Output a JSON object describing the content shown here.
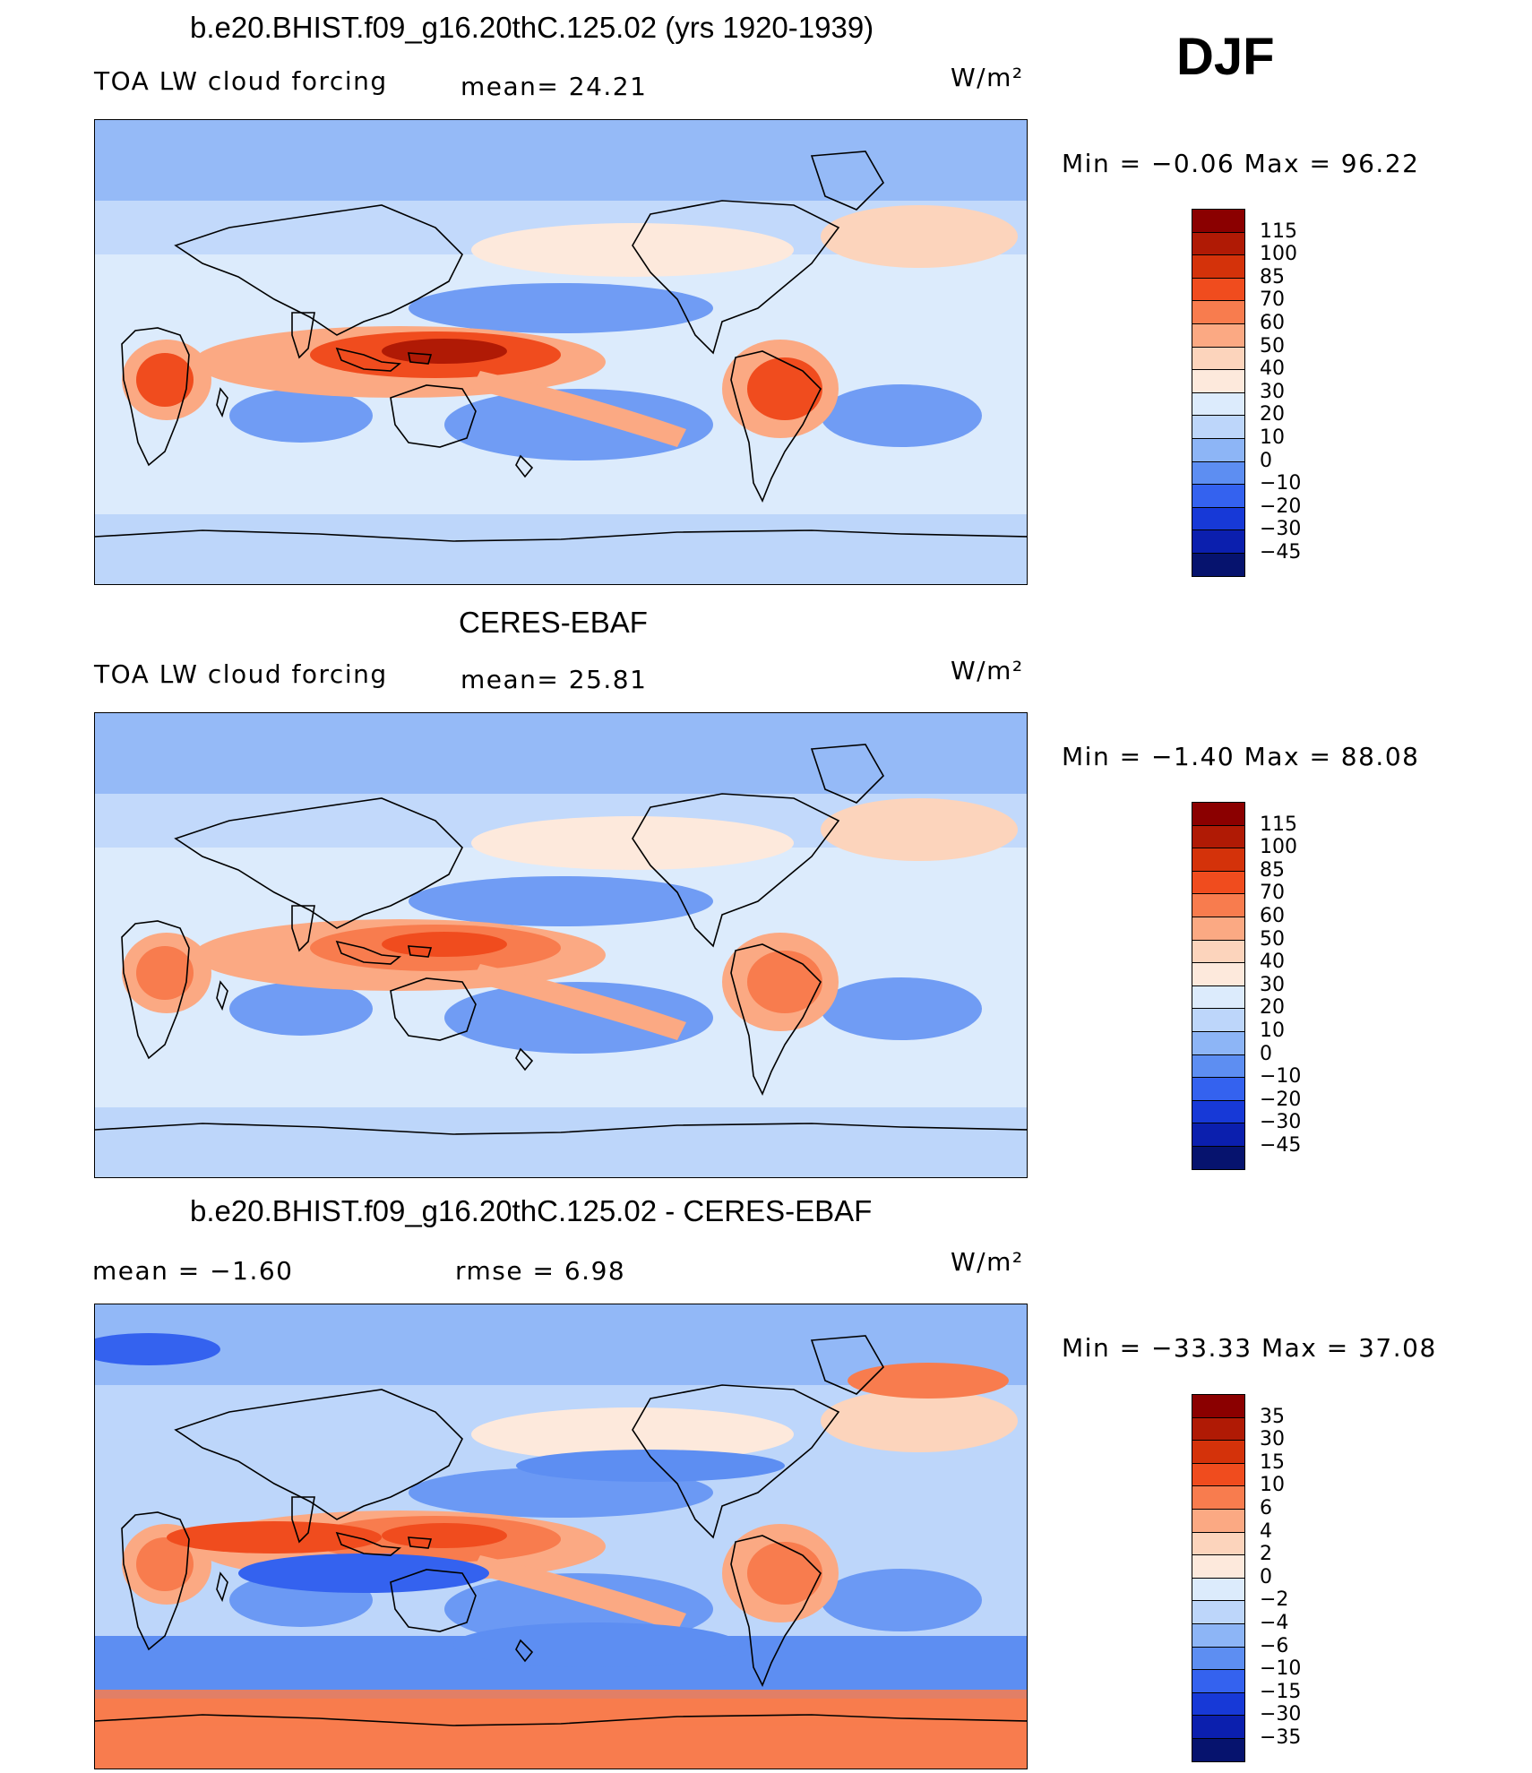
{
  "season": "DJF",
  "units_label": "W/m²",
  "panels": [
    {
      "title": "b.e20.BHIST.f09_g16.20thC.125.02 (yrs 1920-1939)",
      "left_label": "TOA LW cloud forcing",
      "center_label": "mean=  24.21",
      "units": "W/m²",
      "minmax": "Min =   −0.06 Max =   96.22"
    },
    {
      "title": "CERES-EBAF",
      "left_label": "TOA LW cloud forcing",
      "center_label": "mean=  25.81",
      "units": "W/m²",
      "minmax": "Min =   −1.40 Max =   88.08"
    },
    {
      "title": "b.e20.BHIST.f09_g16.20thC.125.02 - CERES-EBAF",
      "left_label": "mean  =   −1.60",
      "center_label": "rmse  =    6.98",
      "units": "W/m²",
      "minmax": "Min  = −33.33 Max =   37.08"
    }
  ],
  "chart_data": [
    {
      "type": "heatmap",
      "title": "b.e20.BHIST.f09_g16.20thC.125.02 (yrs 1920-1939)",
      "field": "TOA LW cloud forcing",
      "units": "W/m²",
      "mean": 24.21,
      "min": -0.06,
      "max": 96.22,
      "colorbar_levels": [
        "115",
        "100",
        "85",
        "70",
        "60",
        "50",
        "40",
        "30",
        "20",
        "10",
        "0",
        "−10",
        "−20",
        "−30",
        "−45"
      ],
      "colorbar_colors": [
        "#8b0000",
        "#b01a05",
        "#d4320a",
        "#f04c1e",
        "#f87c4e",
        "#fba983",
        "#fcd4bc",
        "#fde9dc",
        "#dcebfc",
        "#bdd6fa",
        "#8db5f6",
        "#5d8ef2",
        "#3462ef",
        "#1739d7",
        "#0b1fae",
        "#06136e"
      ]
    },
    {
      "type": "heatmap",
      "title": "CERES-EBAF",
      "field": "TOA LW cloud forcing",
      "units": "W/m²",
      "mean": 25.81,
      "min": -1.4,
      "max": 88.08,
      "colorbar_levels": [
        "115",
        "100",
        "85",
        "70",
        "60",
        "50",
        "40",
        "30",
        "20",
        "10",
        "0",
        "−10",
        "−20",
        "−30",
        "−45"
      ],
      "colorbar_colors": [
        "#8b0000",
        "#b01a05",
        "#d4320a",
        "#f04c1e",
        "#f87c4e",
        "#fba983",
        "#fcd4bc",
        "#fde9dc",
        "#dcebfc",
        "#bdd6fa",
        "#8db5f6",
        "#5d8ef2",
        "#3462ef",
        "#1739d7",
        "#0b1fae",
        "#06136e"
      ]
    },
    {
      "type": "heatmap",
      "title": "b.e20.BHIST.f09_g16.20thC.125.02 - CERES-EBAF",
      "units": "W/m²",
      "mean": -1.6,
      "rmse": 6.98,
      "min": -33.33,
      "max": 37.08,
      "colorbar_levels": [
        "35",
        "30",
        "15",
        "10",
        "6",
        "4",
        "2",
        "0",
        "−2",
        "−4",
        "−6",
        "−10",
        "−15",
        "−30",
        "−35"
      ],
      "colorbar_colors": [
        "#8b0000",
        "#b01a05",
        "#d4320a",
        "#f04c1e",
        "#f87c4e",
        "#fba983",
        "#fcd4bc",
        "#fde9dc",
        "#dcebfc",
        "#bdd6fa",
        "#8db5f6",
        "#5d8ef2",
        "#3462ef",
        "#1739d7",
        "#0b1fae",
        "#06136e"
      ]
    }
  ]
}
